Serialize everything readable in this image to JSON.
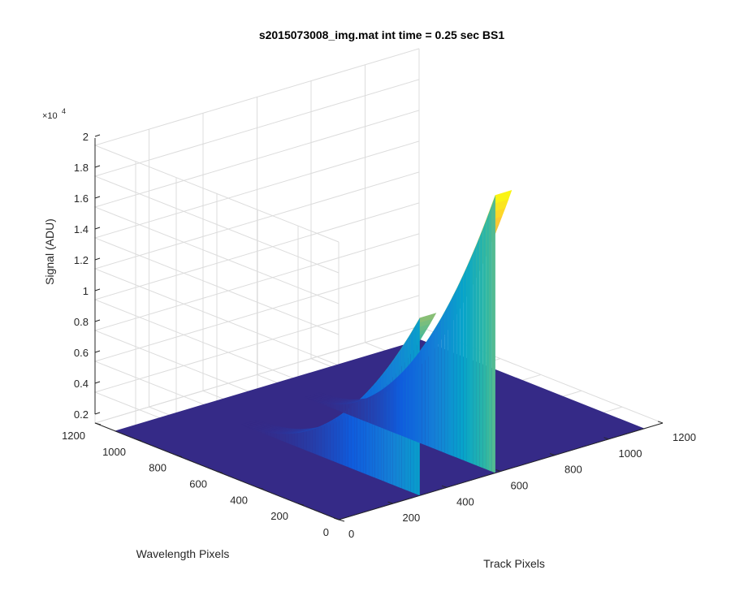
{
  "chart_data": {
    "type": "surface",
    "title": "s2015073008_img.mat int time = 0.25 sec   BS1",
    "xlabel": "Track Pixels",
    "ylabel": "Wavelength Pixels",
    "zlabel": "Signal (ADU)",
    "z_exponent_label": "×10",
    "z_exponent_power": "4",
    "xlim": [
      0,
      1200
    ],
    "ylim": [
      0,
      1200
    ],
    "zlim": [
      0.2,
      2.0
    ],
    "x_ticks": [
      "0",
      "200",
      "400",
      "600",
      "800",
      "1000",
      "1200"
    ],
    "y_ticks": [
      "0",
      "200",
      "400",
      "600",
      "800",
      "1000",
      "1200"
    ],
    "z_ticks": [
      "0.2",
      "0.4",
      "0.6",
      "0.8",
      "1",
      "1.2",
      "1.4",
      "1.6",
      "1.8",
      "2"
    ],
    "background_level": 0.2,
    "colormap": [
      "#352a87",
      "#0f5cdd",
      "#1481d6",
      "#06a4ca",
      "#2eb7a4",
      "#87bf77",
      "#d1bb59",
      "#fec832",
      "#f9fb0e"
    ],
    "grid": true,
    "peaks": [
      {
        "name": "",
        "track_start": 300,
        "track_end": 360,
        "wavelength_start": 0,
        "wavelength_end": 880,
        "z_max": 1.35,
        "z_at_end": 0.2
      },
      {
        "name": "",
        "track_start": 580,
        "track_end": 640,
        "wavelength_start": 0,
        "wavelength_end": 940,
        "z_max": 2.0,
        "z_at_end": 0.2
      }
    ]
  }
}
